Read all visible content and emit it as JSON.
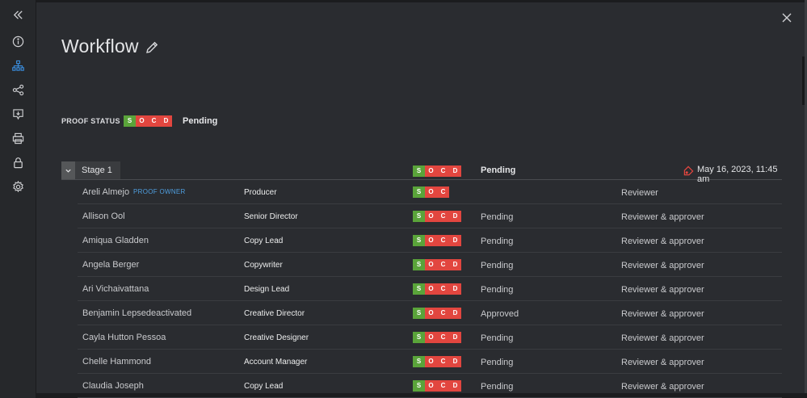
{
  "header": {
    "title": "Workflow",
    "close_label": "Close"
  },
  "sidebar": {
    "items": [
      {
        "icon": "collapse-icon"
      },
      {
        "icon": "info-icon"
      },
      {
        "icon": "workflow-icon",
        "active": true
      },
      {
        "icon": "share-icon"
      },
      {
        "icon": "comment-icon"
      },
      {
        "icon": "print-icon"
      },
      {
        "icon": "lock-icon"
      },
      {
        "icon": "gear-icon"
      }
    ]
  },
  "proof": {
    "label": "PROOF STATUS",
    "status": "Pending",
    "badges": [
      "S",
      "O",
      "C",
      "D"
    ]
  },
  "colors": {
    "green": "#5aa43a",
    "red": "#e2463f",
    "owner_link": "#4f9fe0",
    "accent": "#3a8ee0"
  },
  "stage": {
    "name": "Stage 1",
    "status": "Pending",
    "deadline": "May 16, 2023, 11:45 am",
    "badges": [
      "S",
      "O",
      "C",
      "D"
    ]
  },
  "reviewers": [
    {
      "name": "Areli Almejo",
      "owner_tag": "PROOF OWNER",
      "role": "Producer",
      "badges": [
        "S",
        "O",
        "C"
      ],
      "status": "",
      "access": "Reviewer"
    },
    {
      "name": "Allison Ool",
      "owner_tag": "",
      "role": "Senior Director",
      "badges": [
        "S",
        "O",
        "C",
        "D"
      ],
      "status": "Pending",
      "access": "Reviewer & approver"
    },
    {
      "name": "Amiqua Gladden",
      "owner_tag": "",
      "role": "Copy Lead",
      "badges": [
        "S",
        "O",
        "C",
        "D"
      ],
      "status": "Pending",
      "access": "Reviewer & approver"
    },
    {
      "name": "Angela Berger",
      "owner_tag": "",
      "role": "Copywriter",
      "badges": [
        "S",
        "O",
        "C",
        "D"
      ],
      "status": "Pending",
      "access": "Reviewer & approver"
    },
    {
      "name": "Ari Vichaivattana",
      "owner_tag": "",
      "role": "Design Lead",
      "badges": [
        "S",
        "O",
        "C",
        "D"
      ],
      "status": "Pending",
      "access": "Reviewer & approver"
    },
    {
      "name": "Benjamin Lepsedeactivated",
      "owner_tag": "",
      "role": "Creative Director",
      "badges": [
        "S",
        "O",
        "C",
        "D"
      ],
      "status": "Approved",
      "access": "Reviewer & approver"
    },
    {
      "name": "Cayla Hutton Pessoa",
      "owner_tag": "",
      "role": "Creative Designer",
      "badges": [
        "S",
        "O",
        "C",
        "D"
      ],
      "status": "Pending",
      "access": "Reviewer & approver"
    },
    {
      "name": "Chelle Hammond",
      "owner_tag": "",
      "role": "Account Manager",
      "badges": [
        "S",
        "O",
        "C",
        "D"
      ],
      "status": "Pending",
      "access": "Reviewer & approver"
    },
    {
      "name": "Claudia Joseph",
      "owner_tag": "",
      "role": "Copy Lead",
      "badges": [
        "S",
        "O",
        "C",
        "D"
      ],
      "status": "Pending",
      "access": "Reviewer & approver"
    }
  ]
}
